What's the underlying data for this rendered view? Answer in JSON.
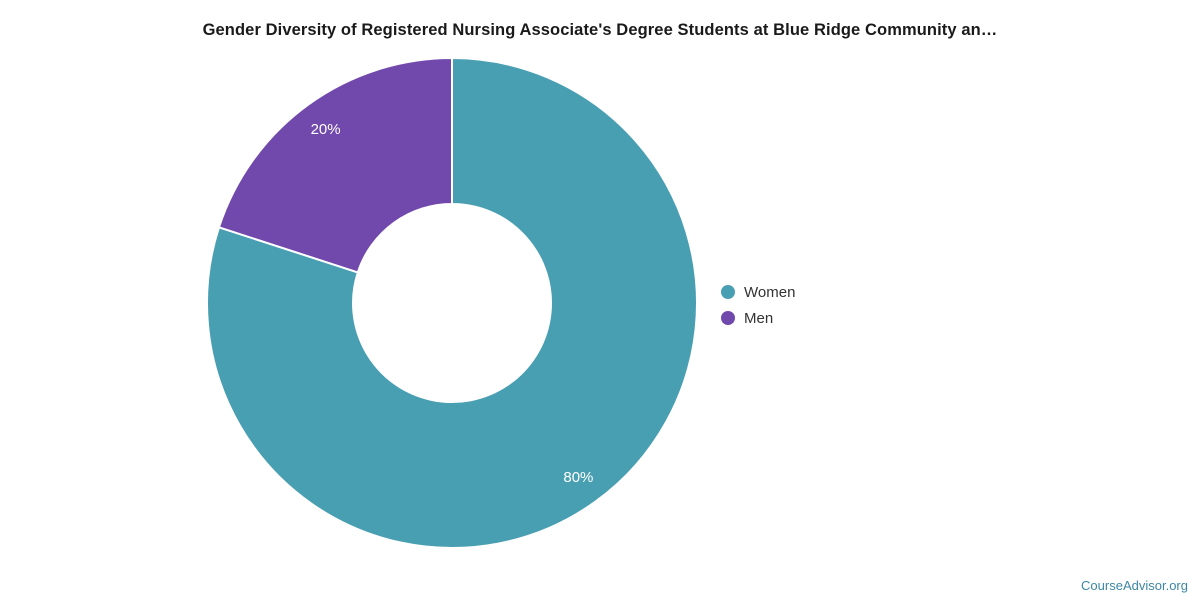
{
  "page": {
    "footer_link": "CourseAdvisor.org"
  },
  "chart_data": {
    "type": "pie",
    "subtype": "donut",
    "title": "Gender Diversity of Registered Nursing Associate's Degree Students at Blue Ridge Community an…",
    "legend_position": "right",
    "total": 100,
    "slices": [
      {
        "label": "Women",
        "value": 80,
        "percent_label": "80%",
        "color": "#499fb2"
      },
      {
        "label": "Men",
        "value": 20,
        "percent_label": "20%",
        "color": "#7148ac"
      }
    ],
    "layout_hints": {
      "start_angle": "top",
      "direction": "clockwise",
      "slice_divider_color": "#ffffff",
      "slice_label_text_color": "#ffffff",
      "legend_text_color": "#333333",
      "footer_link_color": "#3d87a5"
    }
  }
}
